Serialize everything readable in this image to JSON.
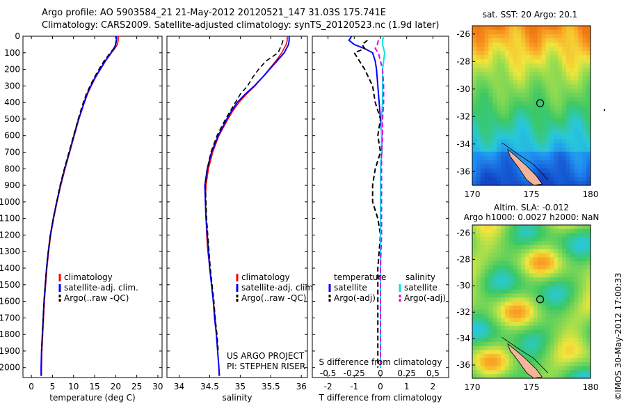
{
  "title_line1": "Argo profile: AO 5903584_21 21-May-2012 20120521_147 31.03S 175.741E",
  "title_line2": "Climatology: CARS2009. Satellite-adjusted climatology: synTS_20120523.nc (1.9d later)",
  "colors": {
    "climatology": "#ff0000",
    "satellite": "#0000ff",
    "argo": "#000000",
    "salinity_sat": "#00e5e5",
    "salinity_argo": "#e000e0"
  },
  "depth_axis": {
    "ticks": [
      "0",
      "100",
      "200",
      "300",
      "400",
      "500",
      "600",
      "700",
      "800",
      "900",
      "1000",
      "1100",
      "1200",
      "1300",
      "1400",
      "1500",
      "1600",
      "1700",
      "1800",
      "1900",
      "2000"
    ],
    "ylim": [
      0,
      2060
    ]
  },
  "chart_data": [
    {
      "type": "line",
      "xlabel": "temperature (deg C)",
      "xlim": [
        -2,
        31
      ],
      "xticks": [
        "0",
        "5",
        "10",
        "15",
        "20",
        "25",
        "30"
      ],
      "legend": [
        "climatology",
        "satellite-adj. clim.",
        "Argo(..raw -QC)"
      ],
      "depth": [
        0,
        25,
        50,
        75,
        100,
        150,
        200,
        250,
        300,
        350,
        400,
        450,
        500,
        600,
        700,
        800,
        900,
        1000,
        1100,
        1200,
        1300,
        1400,
        1500,
        1600,
        1700,
        1800,
        1900,
        2000,
        2050
      ],
      "series": [
        {
          "name": "climatology",
          "values": [
            20.6,
            20.6,
            20.4,
            19.8,
            19.0,
            17.6,
            16.4,
            15.2,
            14.2,
            13.3,
            12.6,
            11.9,
            11.3,
            10.2,
            9.1,
            8.0,
            7.0,
            6.1,
            5.3,
            4.6,
            4.1,
            3.7,
            3.4,
            3.1,
            2.9,
            2.7,
            2.5,
            2.4,
            2.4
          ]
        },
        {
          "name": "satellite-adj. clim.",
          "values": [
            20.2,
            20.2,
            20.0,
            19.6,
            18.9,
            17.5,
            16.3,
            15.1,
            14.1,
            13.2,
            12.5,
            11.9,
            11.2,
            10.1,
            9.0,
            7.9,
            6.9,
            6.0,
            5.2,
            4.5,
            4.0,
            3.6,
            3.3,
            3.0,
            2.8,
            2.6,
            2.4,
            2.3,
            2.3
          ]
        },
        {
          "name": "Argo(..raw -QC)",
          "values": [
            null,
            20.1,
            20.0,
            19.5,
            18.7,
            17.2,
            16.0,
            14.9,
            13.9,
            13.0,
            12.3,
            11.7,
            11.1,
            10.0,
            8.9,
            7.8,
            6.8,
            6.0,
            5.2,
            4.5,
            4.0,
            3.6,
            3.3,
            3.0,
            2.8,
            2.6,
            2.4,
            null,
            null
          ]
        }
      ]
    },
    {
      "type": "line",
      "xlabel": "salinity",
      "xlim": [
        33.8,
        36.1
      ],
      "xticks": [
        "34",
        "34.5",
        "35",
        "35.5",
        "36"
      ],
      "legend": [
        "climatology",
        "satellite-adj. clim.",
        "Argo(..raw -QC)"
      ],
      "credit": [
        "US ARGO PROJECT",
        "PI: STEPHEN RISER"
      ],
      "depth": [
        0,
        25,
        50,
        100,
        150,
        200,
        250,
        300,
        350,
        400,
        450,
        500,
        600,
        700,
        800,
        900,
        1000,
        1100,
        1200,
        1300,
        1400,
        1500,
        1600,
        1700,
        1800,
        1900,
        2000,
        2050
      ],
      "series": [
        {
          "name": "climatology",
          "values": [
            35.77,
            35.77,
            35.75,
            35.68,
            35.58,
            35.47,
            35.36,
            35.24,
            35.1,
            34.98,
            34.88,
            34.8,
            34.65,
            34.55,
            34.48,
            34.44,
            34.43,
            34.44,
            34.45,
            34.47,
            34.5,
            34.53,
            34.56,
            34.59,
            34.61,
            34.63,
            34.65,
            34.65
          ]
        },
        {
          "name": "satellite-adj. clim.",
          "values": [
            35.8,
            35.8,
            35.79,
            35.72,
            35.6,
            35.48,
            35.36,
            35.23,
            35.08,
            34.95,
            34.86,
            34.78,
            34.64,
            34.53,
            34.46,
            34.42,
            34.43,
            34.44,
            34.46,
            34.48,
            34.5,
            34.53,
            34.56,
            34.58,
            34.61,
            34.63,
            34.65,
            34.66
          ]
        },
        {
          "name": "Argo(..raw -QC)",
          "values": [
            null,
            35.7,
            35.68,
            35.62,
            35.42,
            35.3,
            35.2,
            35.12,
            35.0,
            34.92,
            34.84,
            34.76,
            34.62,
            34.52,
            34.46,
            34.43,
            34.44,
            34.45,
            34.47,
            34.49,
            34.51,
            34.54,
            34.57,
            34.59,
            34.62,
            34.64,
            null,
            null
          ]
        }
      ]
    },
    {
      "type": "line",
      "xlabel_bottom": "T difference from climatology",
      "xlabel_top": "S difference from climatology",
      "xlim": [
        -2.6,
        2.6
      ],
      "xticks": [
        "-2",
        "-1",
        "0",
        "1",
        "2"
      ],
      "sticks": [
        "-0.5",
        "-0.25",
        "0",
        "0.25",
        "0.5"
      ],
      "legend_headers": [
        "temperature",
        "salinity"
      ],
      "legend": [
        "satellite",
        "Argo(-adj)",
        "satellite",
        "Argo(-adj)"
      ],
      "depth": [
        0,
        25,
        50,
        75,
        100,
        150,
        200,
        300,
        400,
        500,
        600,
        700,
        800,
        900,
        1000,
        1100,
        1200,
        1400,
        1600,
        1800,
        2000
      ],
      "series": [
        {
          "name": "temperature satellite",
          "values": [
            -1.1,
            -1.2,
            -1.0,
            -0.6,
            -0.3,
            -0.2,
            -0.15,
            -0.1,
            -0.05,
            0.0,
            0.05,
            0.05,
            0.0,
            0.0,
            0.0,
            0.0,
            0.0,
            0.0,
            0.0,
            0.0,
            0.0
          ]
        },
        {
          "name": "temperature Argo(-adj)",
          "values": [
            null,
            -0.5,
            -0.7,
            -0.6,
            -1.0,
            -0.8,
            -0.6,
            -0.3,
            -0.2,
            0.0,
            -0.1,
            0.0,
            -0.2,
            -0.3,
            -0.3,
            -0.1,
            0.0,
            -0.1,
            -0.1,
            -0.1,
            -0.1
          ]
        },
        {
          "name": "salinity satellite",
          "values": [
            0.03,
            0.02,
            0.02,
            0.03,
            0.04,
            0.03,
            0.02,
            0.02,
            0.02,
            0.01,
            0.01,
            0.01,
            0.0,
            0.0,
            0.0,
            0.0,
            0.0,
            0.0,
            0.0,
            0.0,
            0.0
          ]
        },
        {
          "name": "salinity Argo(-adj)",
          "values": [
            null,
            -0.02,
            -0.03,
            -0.05,
            -0.02,
            0.0,
            0.02,
            0.03,
            0.03,
            0.02,
            0.02,
            0.01,
            0.01,
            0.01,
            0.01,
            0.01,
            0.01,
            0.0,
            0.0,
            0.0,
            0.0
          ]
        }
      ]
    }
  ],
  "maps": [
    {
      "type": "heatmap",
      "title": "sat. SST: 20 Argo: 20.1",
      "xticks": [
        "170",
        "175",
        "180"
      ],
      "yticks": [
        "-26",
        "-28",
        "-30",
        "-32",
        "-34",
        "-36"
      ],
      "xlim": [
        170,
        180
      ],
      "ylim": [
        -37,
        -25.4
      ],
      "marker": {
        "lon": 175.74,
        "lat": -31.03
      }
    },
    {
      "type": "heatmap",
      "title_line1": "Altim. SLA: -0.012",
      "title_line2": "Argo h1000: 0.0027 h2000: NaN",
      "xticks": [
        "170",
        "175",
        "180"
      ],
      "yticks": [
        "-26",
        "-28",
        "-30",
        "-32",
        "-34",
        "-36"
      ],
      "xlim": [
        170,
        180
      ],
      "ylim": [
        -37,
        -25.4
      ],
      "marker": {
        "lon": 175.74,
        "lat": -31.03
      }
    }
  ],
  "footer": "©IMOS 30-May-2012 17:00:33"
}
